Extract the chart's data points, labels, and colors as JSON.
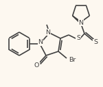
{
  "bg_color": "#fdf8f0",
  "bond_color": "#404040",
  "text_color": "#404040",
  "bond_lw": 1.2,
  "font_size": 6.8,
  "figsize": [
    1.5,
    1.27
  ],
  "dpi": 100,
  "xlim": [
    0,
    150
  ],
  "ylim": [
    0,
    127
  ]
}
